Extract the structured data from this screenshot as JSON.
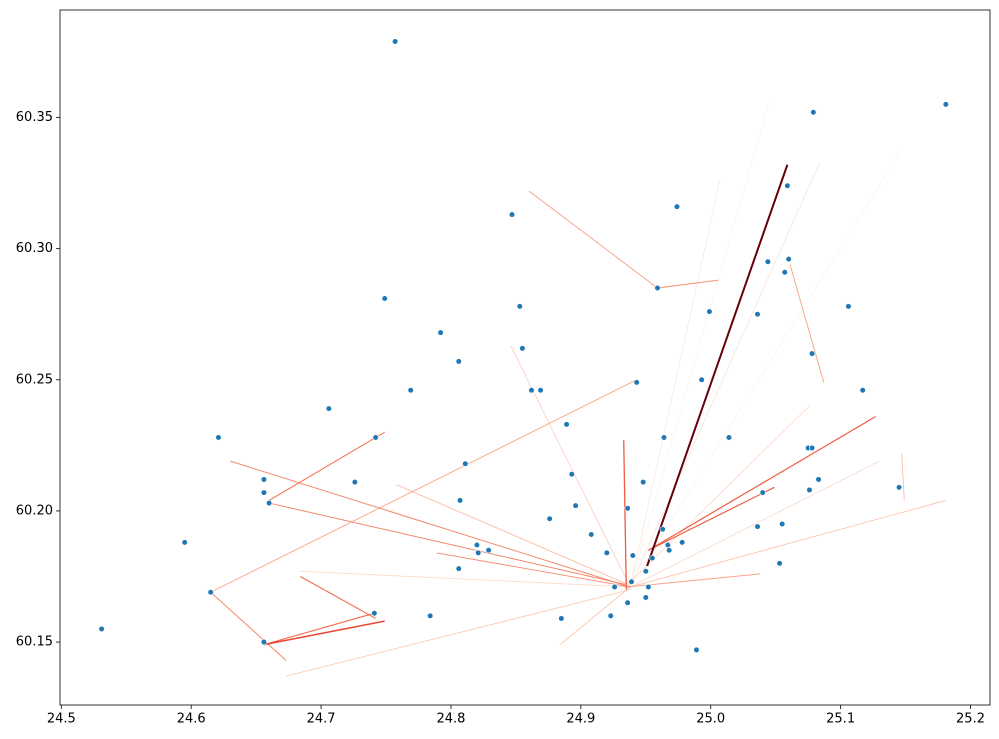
{
  "chart_data": {
    "type": "scatter",
    "point_color": "#1f77b4",
    "x": [
      24.757,
      25.181,
      25.079,
      24.531,
      24.595,
      24.615,
      24.621,
      24.656,
      24.656,
      24.66,
      24.656,
      24.706,
      24.726,
      24.742,
      24.749,
      24.741,
      24.769,
      24.784,
      24.792,
      24.806,
      24.806,
      24.807,
      24.811,
      24.82,
      24.821,
      24.829,
      24.847,
      24.853,
      24.855,
      24.862,
      24.869,
      24.876,
      24.885,
      24.889,
      24.893,
      24.896,
      24.908,
      24.92,
      24.923,
      24.926,
      24.936,
      24.936,
      24.939,
      24.94,
      24.943,
      24.948,
      24.95,
      24.95,
      24.952,
      24.955,
      24.959,
      24.963,
      24.964,
      24.967,
      24.968,
      24.974,
      24.978,
      24.989,
      24.993,
      24.999,
      25.014,
      25.036,
      25.036,
      25.04,
      25.044,
      25.053,
      25.055,
      25.057,
      25.059,
      25.06,
      25.075,
      25.076,
      25.078,
      25.078,
      25.083,
      25.106,
      25.117,
      25.145
    ],
    "y": [
      60.379,
      60.355,
      60.352,
      60.155,
      60.188,
      60.169,
      60.228,
      60.212,
      60.207,
      60.203,
      60.15,
      60.239,
      60.211,
      60.228,
      60.281,
      60.161,
      60.246,
      60.16,
      60.268,
      60.257,
      60.178,
      60.204,
      60.218,
      60.187,
      60.184,
      60.185,
      60.313,
      60.278,
      60.262,
      60.246,
      60.246,
      60.197,
      60.159,
      60.233,
      60.214,
      60.202,
      60.191,
      60.184,
      60.16,
      60.171,
      60.201,
      60.165,
      60.173,
      60.183,
      60.249,
      60.211,
      60.167,
      60.177,
      60.171,
      60.182,
      60.285,
      60.193,
      60.228,
      60.187,
      60.185,
      60.316,
      60.188,
      60.147,
      60.25,
      60.276,
      60.228,
      60.275,
      60.194,
      60.207,
      60.295,
      60.18,
      60.195,
      60.291,
      60.324,
      60.296,
      60.224,
      60.208,
      60.224,
      60.26,
      60.212,
      60.278,
      60.246,
      60.209
    ],
    "lines": [
      {
        "x": [
          24.938,
          25.045
        ],
        "y": [
          60.171,
          60.356
        ],
        "color": "#fff0e8",
        "width": 0.6
      },
      {
        "x": [
          24.938,
          25.146
        ],
        "y": [
          60.171,
          60.337
        ],
        "color": "#fff0e8",
        "width": 0.6
      },
      {
        "x": [
          24.938,
          25.084
        ],
        "y": [
          60.171,
          60.333
        ],
        "color": "#fee0d2",
        "width": 0.7
      },
      {
        "x": [
          24.938,
          25.007
        ],
        "y": [
          60.171,
          60.326
        ],
        "color": "#fee3d6",
        "width": 0.7
      },
      {
        "x": [
          24.936,
          25.076
        ],
        "y": [
          60.172,
          60.24
        ],
        "color": "#fdd0bc",
        "width": 0.7
      },
      {
        "x": [
          24.938,
          25.13
        ],
        "y": [
          60.171,
          60.219
        ],
        "color": "#fdd5c4",
        "width": 0.7
      },
      {
        "x": [
          24.684,
          24.938
        ],
        "y": [
          60.177,
          60.171
        ],
        "color": "#fdd2bf",
        "width": 0.7
      },
      {
        "x": [
          24.846,
          24.938
        ],
        "y": [
          60.263,
          60.171
        ],
        "color": "#fcc7b1",
        "width": 0.7
      },
      {
        "x": [
          24.673,
          24.938
        ],
        "y": [
          60.137,
          60.17
        ],
        "color": "#fcc5ae",
        "width": 0.8
      },
      {
        "x": [
          24.938,
          25.181
        ],
        "y": [
          60.171,
          60.204
        ],
        "color": "#fcc0a7",
        "width": 0.8
      },
      {
        "x": [
          24.938,
          24.884
        ],
        "y": [
          60.171,
          60.149
        ],
        "color": "#fcc0a7",
        "width": 0.8
      },
      {
        "x": [
          25.147,
          25.149
        ],
        "y": [
          60.222,
          60.204
        ],
        "color": "#fcb59c",
        "width": 0.8
      },
      {
        "x": [
          24.758,
          24.936
        ],
        "y": [
          60.21,
          60.172
        ],
        "color": "#fbb59c",
        "width": 0.8
      },
      {
        "x": [
          24.936,
          25.038
        ],
        "y": [
          60.171,
          60.176
        ],
        "color": "#f9a58a",
        "width": 0.9
      },
      {
        "x": [
          24.615,
          24.943
        ],
        "y": [
          60.169,
          60.25
        ],
        "color": "#f9a285",
        "width": 0.9
      },
      {
        "x": [
          25.061,
          25.087
        ],
        "y": [
          60.294,
          60.249
        ],
        "color": "#f9a285",
        "width": 0.9
      },
      {
        "x": [
          24.86,
          24.959
        ],
        "y": [
          60.322,
          60.285
        ],
        "color": "#f7a083",
        "width": 0.9
      },
      {
        "x": [
          24.959,
          25.006
        ],
        "y": [
          60.285,
          60.288
        ],
        "color": "#f6906f",
        "width": 0.9
      },
      {
        "x": [
          24.789,
          24.938
        ],
        "y": [
          60.184,
          60.171
        ],
        "color": "#f6876a",
        "width": 0.9
      },
      {
        "x": [
          24.66,
          24.934
        ],
        "y": [
          60.203,
          60.172
        ],
        "color": "#f5876a",
        "width": 1
      },
      {
        "x": [
          24.63,
          24.938
        ],
        "y": [
          60.219,
          60.171
        ],
        "color": "#f4896a",
        "width": 1
      },
      {
        "x": [
          24.615,
          24.673
        ],
        "y": [
          60.169,
          60.143
        ],
        "color": "#f4896a",
        "width": 1
      },
      {
        "x": [
          24.66,
          24.749
        ],
        "y": [
          60.204,
          60.23
        ],
        "color": "#f4694a",
        "width": 1
      },
      {
        "x": [
          24.684,
          24.742
        ],
        "y": [
          60.175,
          60.159
        ],
        "color": "#f26a4b",
        "width": 1.1
      },
      {
        "x": [
          24.656,
          24.741
        ],
        "y": [
          60.149,
          60.161
        ],
        "color": "#f26a4b",
        "width": 1.1
      },
      {
        "x": [
          24.952,
          25.049
        ],
        "y": [
          60.185,
          60.209
        ],
        "color": "#f15d42",
        "width": 1.2
      },
      {
        "x": [
          24.952,
          25.127
        ],
        "y": [
          60.185,
          60.236
        ],
        "color": "#ef5a41",
        "width": 1.2
      },
      {
        "x": [
          24.933,
          24.935
        ],
        "y": [
          60.227,
          60.17
        ],
        "color": "#ef5a41",
        "width": 1.3
      },
      {
        "x": [
          24.656,
          24.749
        ],
        "y": [
          60.149,
          60.158
        ],
        "color": "#e8432e",
        "width": 1.5
      },
      {
        "x": [
          24.951,
          25.059
        ],
        "y": [
          60.179,
          60.332
        ],
        "color": "#67000d",
        "width": 2
      }
    ],
    "xlim": [
      24.499,
      25.215
    ],
    "ylim": [
      60.126,
      60.391
    ],
    "xticks": [
      24.5,
      24.6,
      24.7,
      24.8,
      24.9,
      {
        "value": 25,
        "label": "25.0"
      },
      25.1,
      25.2
    ],
    "yticks": [
      60.15,
      {
        "value": 60.2,
        "label": "60.20"
      },
      60.25,
      {
        "value": 60.3,
        "label": "60.30"
      },
      60.35
    ],
    "grid": false
  }
}
